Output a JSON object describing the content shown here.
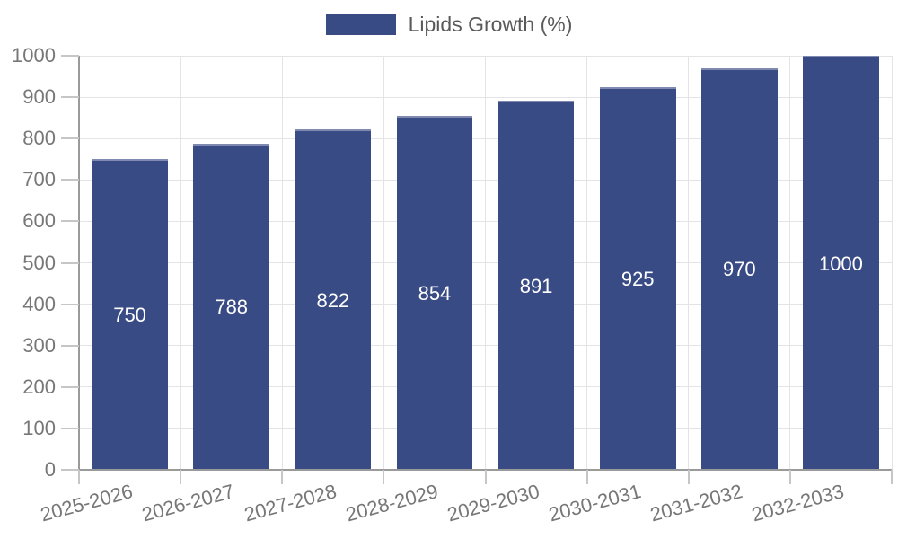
{
  "chart_data": {
    "type": "bar",
    "legend_label": "Lipids Growth (%)",
    "categories": [
      "2025-2026",
      "2026-2027",
      "2027-2028",
      "2028-2029",
      "2029-2030",
      "2030-2031",
      "2031-2032",
      "2032-2033"
    ],
    "values": [
      750,
      788,
      822,
      854,
      891,
      925,
      970,
      1000
    ],
    "yticks": [
      0,
      100,
      200,
      300,
      400,
      500,
      600,
      700,
      800,
      900,
      1000
    ],
    "ylim": [
      0,
      1000
    ],
    "grid": "on",
    "legend_position": "top-center",
    "xlabel": "",
    "ylabel": "",
    "colors": {
      "bar_fill": "#394b85",
      "bar_top_edge": "#8089b0",
      "value_label": "#ffffff",
      "gridline": "#e4e4e4",
      "axis_line": "#9a9a9a",
      "tick_mark": "#c6c6c6",
      "tick_label": "#777777",
      "legend_text": "#5a5a5a",
      "background": "#ffffff"
    }
  }
}
